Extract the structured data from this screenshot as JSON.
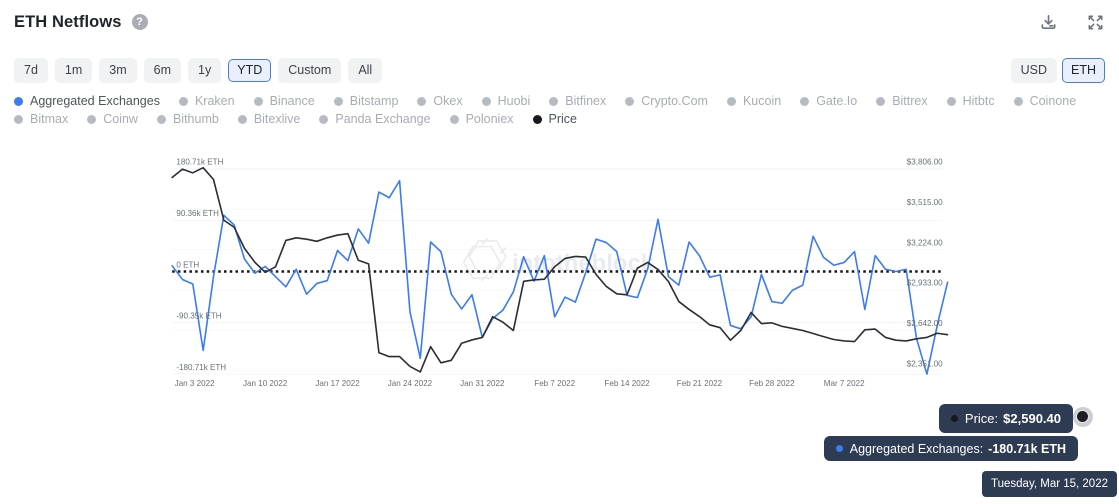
{
  "header": {
    "title": "ETH Netflows",
    "help_icon": "?",
    "download_icon": "download-icon",
    "fullscreen_icon": "expand-icon"
  },
  "toolbar": {
    "ranges": [
      "7d",
      "1m",
      "3m",
      "6m",
      "1y",
      "YTD",
      "Custom",
      "All"
    ],
    "selected_range": "YTD",
    "units": [
      "USD",
      "ETH"
    ],
    "selected_unit": "ETH"
  },
  "legend": {
    "rows": [
      [
        {
          "label": "Aggregated Exchanges",
          "active": true,
          "dot_color": "#3c7cf0"
        },
        {
          "label": "Kraken",
          "active": false
        },
        {
          "label": "Binance",
          "active": false
        },
        {
          "label": "Bitstamp",
          "active": false
        },
        {
          "label": "Okex",
          "active": false
        },
        {
          "label": "Huobi",
          "active": false
        },
        {
          "label": "Bitfinex",
          "active": false
        },
        {
          "label": "Crypto.Com",
          "active": false
        },
        {
          "label": "Kucoin",
          "active": false
        },
        {
          "label": "Gate.Io",
          "active": false
        },
        {
          "label": "Bittrex",
          "active": false
        },
        {
          "label": "Hitbtc",
          "active": false
        },
        {
          "label": "Coinone",
          "active": false
        }
      ],
      [
        {
          "label": "Bitmax",
          "active": false
        },
        {
          "label": "Coinw",
          "active": false
        },
        {
          "label": "Bithumb",
          "active": false
        },
        {
          "label": "Bitexlive",
          "active": false
        },
        {
          "label": "Panda Exchange",
          "active": false
        },
        {
          "label": "Poloniex",
          "active": false
        },
        {
          "label": "Price",
          "active": true,
          "dot_color": "#16191f"
        }
      ]
    ]
  },
  "chart_data": {
    "type": "line",
    "title": "ETH Netflows",
    "watermark": "intotheblock",
    "grid": true,
    "zero_line": "dotted-black",
    "x_dates": [
      "Jan 1 2022",
      "Jan 2 2022",
      "Jan 3 2022",
      "Jan 4 2022",
      "Jan 5 2022",
      "Jan 6 2022",
      "Jan 7 2022",
      "Jan 8 2022",
      "Jan 9 2022",
      "Jan 10 2022",
      "Jan 11 2022",
      "Jan 12 2022",
      "Jan 13 2022",
      "Jan 14 2022",
      "Jan 15 2022",
      "Jan 16 2022",
      "Jan 17 2022",
      "Jan 18 2022",
      "Jan 19 2022",
      "Jan 20 2022",
      "Jan 21 2022",
      "Jan 22 2022",
      "Jan 23 2022",
      "Jan 24 2022",
      "Jan 25 2022",
      "Jan 26 2022",
      "Jan 27 2022",
      "Jan 28 2022",
      "Jan 29 2022",
      "Jan 30 2022",
      "Jan 31 2022",
      "Feb 1 2022",
      "Feb 2 2022",
      "Feb 3 2022",
      "Feb 4 2022",
      "Feb 5 2022",
      "Feb 6 2022",
      "Feb 7 2022",
      "Feb 8 2022",
      "Feb 9 2022",
      "Feb 10 2022",
      "Feb 11 2022",
      "Feb 12 2022",
      "Feb 13 2022",
      "Feb 14 2022",
      "Feb 15 2022",
      "Feb 16 2022",
      "Feb 17 2022",
      "Feb 18 2022",
      "Feb 19 2022",
      "Feb 20 2022",
      "Feb 21 2022",
      "Feb 22 2022",
      "Feb 23 2022",
      "Feb 24 2022",
      "Feb 25 2022",
      "Feb 26 2022",
      "Feb 27 2022",
      "Feb 28 2022",
      "Mar 1 2022",
      "Mar 2 2022",
      "Mar 3 2022",
      "Mar 4 2022",
      "Mar 5 2022",
      "Mar 6 2022",
      "Mar 7 2022",
      "Mar 8 2022",
      "Mar 9 2022",
      "Mar 10 2022",
      "Mar 11 2022",
      "Mar 12 2022",
      "Mar 13 2022",
      "Mar 14 2022",
      "Mar 15 2022",
      "Mar 16 2022",
      "Mar 17 2022"
    ],
    "x_tick_labels": [
      "Jan 3 2022",
      "Jan 10 2022",
      "Jan 17 2022",
      "Jan 24 2022",
      "Jan 31 2022",
      "Feb 7 2022",
      "Feb 14 2022",
      "Feb 21 2022",
      "Feb 28 2022",
      "Mar 7 2022"
    ],
    "x_tick_day_index": [
      2,
      9,
      16,
      23,
      30,
      37,
      44,
      51,
      58,
      65
    ],
    "series": [
      {
        "name": "Aggregated Exchanges",
        "axis": "left",
        "unit": "k ETH",
        "color": "#3c7cf0",
        "values": [
          10,
          -14,
          -22,
          -139,
          -9,
          99,
          82,
          22,
          -3,
          9,
          -9,
          -27,
          4,
          -40,
          -21,
          -16,
          37,
          19,
          75,
          50,
          140,
          130,
          160,
          -71,
          -153,
          52,
          35,
          -40,
          -66,
          -41,
          -116,
          -83,
          -68,
          -36,
          26,
          -17,
          28,
          -80,
          -45,
          -54,
          -2,
          57,
          51,
          35,
          -42,
          -46,
          5,
          92,
          -9,
          -24,
          52,
          28,
          -10,
          -6,
          -95,
          -101,
          -80,
          -5,
          -53,
          -56,
          -33,
          -24,
          62,
          25,
          11,
          16,
          35,
          -67,
          28,
          4,
          0,
          4,
          -118,
          -180.71,
          -95,
          -19
        ]
      },
      {
        "name": "Price",
        "axis": "right",
        "unit": "USD",
        "color": "#2b2e34",
        "values": [
          3744,
          3805,
          3778,
          3815,
          3730,
          3436,
          3385,
          3233,
          3132,
          3060,
          3100,
          3290,
          3309,
          3299,
          3284,
          3309,
          3329,
          3339,
          3147,
          3121,
          2480,
          2452,
          2452,
          2381,
          2341,
          2523,
          2407,
          2425,
          2548,
          2572,
          2590,
          2740,
          2700,
          2640,
          2995,
          3005,
          3010,
          3100,
          3160,
          3175,
          3170,
          3045,
          2958,
          2905,
          2898,
          3090,
          3131,
          3080,
          2994,
          2850,
          2792,
          2741,
          2681,
          2660,
          2570,
          2640,
          2770,
          2690,
          2695,
          2670,
          2655,
          2640,
          2618,
          2596,
          2575,
          2565,
          2560,
          2645,
          2650,
          2590,
          2570,
          2565,
          2580,
          2590.4,
          2620,
          2610
        ]
      }
    ],
    "left_axis": {
      "tick_values": [
        180.71,
        90.36,
        0,
        -90.35,
        -180.71
      ],
      "tick_labels": [
        "180.71k ETH",
        "90.36k ETH",
        "0 ETH",
        "-90.35k ETH",
        "-180.71k ETH"
      ],
      "range": [
        -180.71,
        180.71
      ]
    },
    "right_axis": {
      "tick_values": [
        3806,
        3515,
        3224,
        2933,
        2642,
        2351
      ],
      "tick_labels": [
        "$3,806.00",
        "$3,515.00",
        "$3,224.00",
        "$2,933.00",
        "$2,642.00",
        "$2,351.00"
      ],
      "range": [
        2351,
        3806
      ]
    },
    "hover": {
      "day_index": 73,
      "date": "Tuesday, Mar 15, 2022",
      "price_label": "Price:",
      "price_value": "$2,590.40",
      "agg_label": "Aggregated Exchanges:",
      "agg_value": "-180.71k ETH"
    }
  },
  "colors": {
    "accent_blue": "#3c7cf0",
    "price_black": "#2b2e34",
    "tooltip_bg": "#2e3c53",
    "selected_border": "#4a7ce0",
    "grid": "#eef0f4",
    "axis_text": "#677078",
    "watermark": "#e9ebef"
  }
}
